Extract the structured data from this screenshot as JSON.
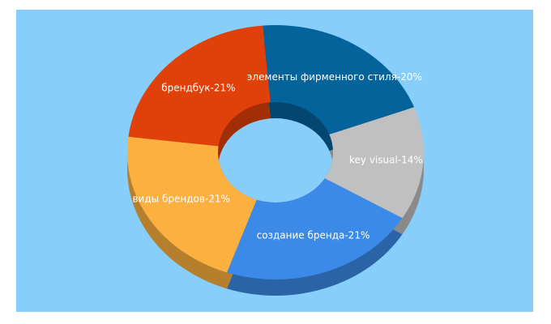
{
  "chart_data": {
    "type": "donut",
    "values": [
      20,
      14,
      21,
      21,
      21
    ],
    "value_labels": [
      "элементы фирменного стиля-20%",
      "key visual-14%",
      "создание бренда-21%",
      "виды брендов-21%",
      "брендбук-21%"
    ],
    "colors": [
      "#04639b",
      "#c0c0c0",
      "#3c8ae8",
      "#fbb040",
      "#e0400a"
    ]
  }
}
